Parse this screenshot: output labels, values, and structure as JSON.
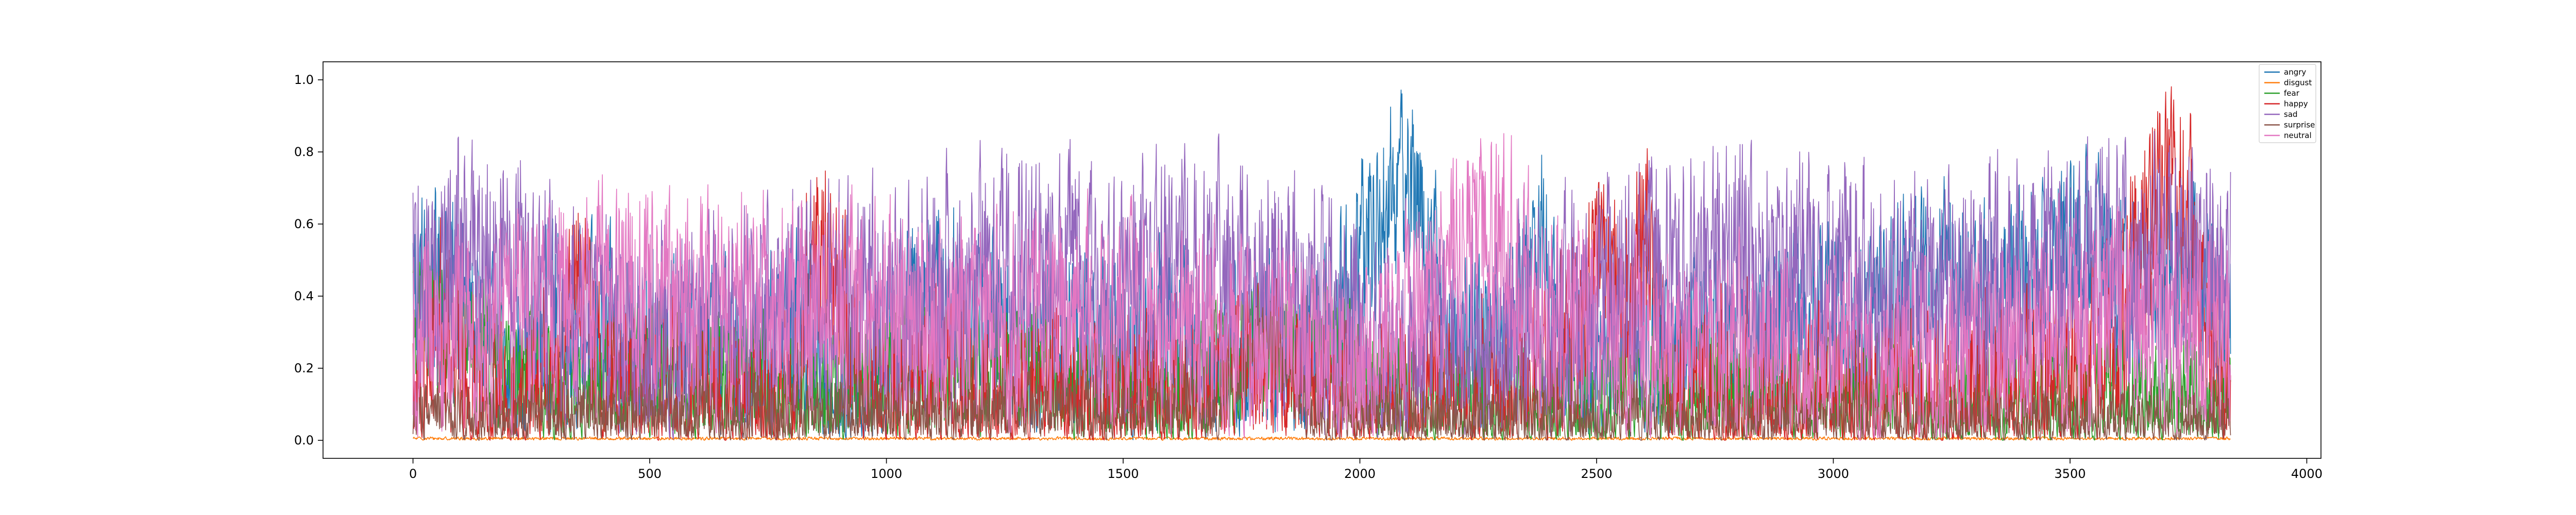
{
  "chart_data": {
    "type": "line",
    "title": "",
    "xlabel": "",
    "ylabel": "",
    "xlim": [
      -190,
      4030
    ],
    "ylim": [
      -0.05,
      1.05
    ],
    "x_ticks": [
      0,
      500,
      1000,
      1500,
      2000,
      2500,
      3000,
      3500,
      4000
    ],
    "y_ticks": [
      0.0,
      0.2,
      0.4,
      0.6,
      0.8,
      1.0
    ],
    "x_tick_labels": [
      "0",
      "500",
      "1000",
      "1500",
      "2000",
      "2500",
      "3000",
      "3500",
      "4000"
    ],
    "y_tick_labels": [
      "0.0",
      "0.2",
      "0.4",
      "0.6",
      "0.8",
      "1.0"
    ],
    "grid": false,
    "legend_position": "top-right",
    "n_points": 3840,
    "x_step": 1,
    "series": [
      {
        "name": "angry",
        "color": "#1f77b4",
        "knots": [
          [
            0,
            0.45
          ],
          [
            100,
            0.4
          ],
          [
            200,
            0.1
          ],
          [
            300,
            0.35
          ],
          [
            400,
            0.3
          ],
          [
            500,
            0.25
          ],
          [
            600,
            0.3
          ],
          [
            700,
            0.15
          ],
          [
            800,
            0.35
          ],
          [
            900,
            0.1
          ],
          [
            1000,
            0.2
          ],
          [
            1080,
            0.45
          ],
          [
            1200,
            0.35
          ],
          [
            1300,
            0.25
          ],
          [
            1400,
            0.3
          ],
          [
            1500,
            0.25
          ],
          [
            1600,
            0.3
          ],
          [
            1700,
            0.2
          ],
          [
            1800,
            0.25
          ],
          [
            1900,
            0.2
          ],
          [
            1980,
            0.45
          ],
          [
            2050,
            0.65
          ],
          [
            2100,
            0.75
          ],
          [
            2150,
            0.55
          ],
          [
            2200,
            0.2
          ],
          [
            2300,
            0.3
          ],
          [
            2380,
            0.55
          ],
          [
            2450,
            0.2
          ],
          [
            2550,
            0.25
          ],
          [
            2650,
            0.2
          ],
          [
            2750,
            0.25
          ],
          [
            2850,
            0.3
          ],
          [
            2950,
            0.35
          ],
          [
            3050,
            0.3
          ],
          [
            3150,
            0.4
          ],
          [
            3250,
            0.45
          ],
          [
            3350,
            0.35
          ],
          [
            3450,
            0.5
          ],
          [
            3550,
            0.55
          ],
          [
            3650,
            0.4
          ],
          [
            3750,
            0.45
          ],
          [
            3840,
            0.35
          ]
        ],
        "amp": 0.35
      },
      {
        "name": "disgust",
        "color": "#ff7f0e",
        "knots": [
          [
            0,
            0.005
          ],
          [
            3840,
            0.005
          ]
        ],
        "amp": 0.006
      },
      {
        "name": "fear",
        "color": "#2ca02c",
        "knots": [
          [
            0,
            0.35
          ],
          [
            100,
            0.3
          ],
          [
            200,
            0.2
          ],
          [
            300,
            0.1
          ],
          [
            400,
            0.15
          ],
          [
            500,
            0.2
          ],
          [
            600,
            0.15
          ],
          [
            700,
            0.2
          ],
          [
            800,
            0.1
          ],
          [
            900,
            0.12
          ],
          [
            1000,
            0.2
          ],
          [
            1100,
            0.22
          ],
          [
            1200,
            0.2
          ],
          [
            1300,
            0.22
          ],
          [
            1400,
            0.15
          ],
          [
            1500,
            0.12
          ],
          [
            1600,
            0.1
          ],
          [
            1700,
            0.18
          ],
          [
            1800,
            0.25
          ],
          [
            1900,
            0.3
          ],
          [
            2000,
            0.15
          ],
          [
            2100,
            0.1
          ],
          [
            2200,
            0.1
          ],
          [
            2300,
            0.08
          ],
          [
            2400,
            0.1
          ],
          [
            2500,
            0.08
          ],
          [
            2600,
            0.1
          ],
          [
            2700,
            0.12
          ],
          [
            2800,
            0.1
          ],
          [
            2900,
            0.12
          ],
          [
            3000,
            0.1
          ],
          [
            3100,
            0.12
          ],
          [
            3200,
            0.1
          ],
          [
            3300,
            0.08
          ],
          [
            3400,
            0.1
          ],
          [
            3500,
            0.08
          ],
          [
            3600,
            0.1
          ],
          [
            3700,
            0.08
          ],
          [
            3840,
            0.1
          ]
        ],
        "amp": 0.25
      },
      {
        "name": "happy",
        "color": "#d62728",
        "knots": [
          [
            0,
            0.05
          ],
          [
            50,
            0.4
          ],
          [
            100,
            0.1
          ],
          [
            300,
            0.1
          ],
          [
            350,
            0.5
          ],
          [
            400,
            0.15
          ],
          [
            500,
            0.08
          ],
          [
            800,
            0.08
          ],
          [
            850,
            0.55
          ],
          [
            900,
            0.45
          ],
          [
            950,
            0.08
          ],
          [
            1500,
            0.06
          ],
          [
            1700,
            0.1
          ],
          [
            1800,
            0.25
          ],
          [
            1850,
            0.1
          ],
          [
            2000,
            0.04
          ],
          [
            2200,
            0.05
          ],
          [
            2300,
            0.08
          ],
          [
            2400,
            0.1
          ],
          [
            2500,
            0.45
          ],
          [
            2550,
            0.3
          ],
          [
            2600,
            0.55
          ],
          [
            2650,
            0.15
          ],
          [
            2800,
            0.08
          ],
          [
            3000,
            0.05
          ],
          [
            3300,
            0.08
          ],
          [
            3500,
            0.1
          ],
          [
            3600,
            0.25
          ],
          [
            3650,
            0.55
          ],
          [
            3700,
            0.75
          ],
          [
            3750,
            0.6
          ],
          [
            3800,
            0.2
          ],
          [
            3840,
            0.05
          ]
        ],
        "amp": 0.4
      },
      {
        "name": "sad",
        "color": "#9467bd",
        "knots": [
          [
            0,
            0.4
          ],
          [
            150,
            0.55
          ],
          [
            300,
            0.35
          ],
          [
            500,
            0.25
          ],
          [
            700,
            0.3
          ],
          [
            900,
            0.35
          ],
          [
            1100,
            0.4
          ],
          [
            1300,
            0.45
          ],
          [
            1500,
            0.4
          ],
          [
            1700,
            0.45
          ],
          [
            1850,
            0.4
          ],
          [
            1950,
            0.3
          ],
          [
            2050,
            0.15
          ],
          [
            2200,
            0.25
          ],
          [
            2400,
            0.35
          ],
          [
            2600,
            0.45
          ],
          [
            2800,
            0.5
          ],
          [
            3000,
            0.45
          ],
          [
            3200,
            0.4
          ],
          [
            3400,
            0.45
          ],
          [
            3600,
            0.5
          ],
          [
            3840,
            0.45
          ]
        ],
        "amp": 0.45
      },
      {
        "name": "surprise",
        "color": "#8c564b",
        "knots": [
          [
            0,
            0.05
          ],
          [
            1700,
            0.08
          ],
          [
            1800,
            0.3
          ],
          [
            1850,
            0.2
          ],
          [
            1900,
            0.05
          ],
          [
            3840,
            0.04
          ]
        ],
        "amp": 0.15
      },
      {
        "name": "neutral",
        "color": "#e377c2",
        "knots": [
          [
            0,
            0.2
          ],
          [
            200,
            0.35
          ],
          [
            400,
            0.4
          ],
          [
            600,
            0.35
          ],
          [
            800,
            0.4
          ],
          [
            1000,
            0.35
          ],
          [
            1200,
            0.3
          ],
          [
            1400,
            0.35
          ],
          [
            1600,
            0.3
          ],
          [
            1800,
            0.25
          ],
          [
            2000,
            0.2
          ],
          [
            2200,
            0.5
          ],
          [
            2300,
            0.55
          ],
          [
            2400,
            0.35
          ],
          [
            2600,
            0.2
          ],
          [
            2800,
            0.25
          ],
          [
            3000,
            0.2
          ],
          [
            3200,
            0.15
          ],
          [
            3400,
            0.25
          ],
          [
            3500,
            0.35
          ],
          [
            3600,
            0.3
          ],
          [
            3840,
            0.25
          ]
        ],
        "amp": 0.4
      }
    ]
  }
}
